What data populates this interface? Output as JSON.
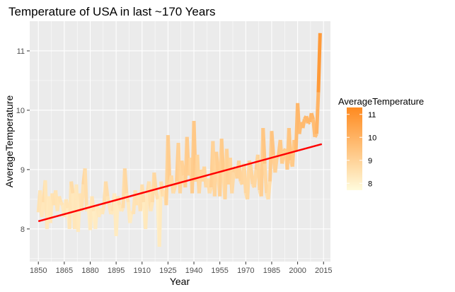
{
  "chart_data": {
    "type": "line",
    "title": "Temperature of USA in last ~170 Years",
    "xlabel": "Year",
    "ylabel": "AverageTemperature",
    "xlim": [
      1845,
      2019
    ],
    "ylim": [
      7.45,
      11.5
    ],
    "x_ticks": [
      "1850",
      "1865",
      "1880",
      "1895",
      "1910",
      "1925",
      "1940",
      "1955",
      "1970",
      "1985",
      "2000",
      "2015"
    ],
    "y_ticks": [
      "8",
      "9",
      "10",
      "11"
    ],
    "grid": true,
    "legend_position": "right",
    "legend": {
      "title": "AverageTemperature",
      "labels": [
        "11",
        "10",
        "9",
        "8"
      ],
      "low_color": "#fffbdc",
      "high_color": "#ff8a1f"
    },
    "colors": {
      "panel": "#ebebeb",
      "grid": "#ffffff",
      "trend": "#ff0000"
    },
    "series": [
      {
        "x": [
          1850,
          1851,
          1852,
          1853,
          1854,
          1855,
          1856,
          1857,
          1858,
          1859,
          1860,
          1861,
          1862,
          1863,
          1864,
          1865,
          1866,
          1867,
          1868,
          1869,
          1870,
          1871,
          1872,
          1873,
          1874,
          1875,
          1876,
          1877,
          1878,
          1879,
          1880,
          1881,
          1882,
          1883,
          1884,
          1885,
          1886,
          1887,
          1888,
          1889,
          1890,
          1891,
          1892,
          1893,
          1894,
          1895,
          1896,
          1897,
          1898,
          1899,
          1900,
          1901,
          1902,
          1903,
          1904,
          1905,
          1906,
          1907,
          1908,
          1909,
          1910,
          1911,
          1912,
          1913,
          1914,
          1915,
          1916,
          1917,
          1918,
          1919,
          1920,
          1921,
          1922,
          1923,
          1924,
          1925,
          1926,
          1927,
          1928,
          1929,
          1930,
          1931,
          1932,
          1933,
          1934,
          1935,
          1936,
          1937,
          1938,
          1939,
          1940,
          1941,
          1942,
          1943,
          1944,
          1945,
          1946,
          1947,
          1948,
          1949,
          1950,
          1951,
          1952,
          1953,
          1954,
          1955,
          1956,
          1957,
          1958,
          1959,
          1960,
          1961,
          1962,
          1963,
          1964,
          1965,
          1966,
          1967,
          1968,
          1969,
          1970,
          1971,
          1972,
          1973,
          1974,
          1975,
          1976,
          1977,
          1978,
          1979,
          1980,
          1981,
          1982,
          1983,
          1984,
          1985,
          1986,
          1987,
          1988,
          1989,
          1990,
          1991,
          1992,
          1993,
          1994,
          1995,
          1996,
          1997,
          1998,
          1999,
          2000,
          2001,
          2002,
          2003,
          2004,
          2005,
          2006,
          2007,
          2008,
          2009,
          2010,
          2011,
          2012,
          2013
        ],
        "values": [
          8.28,
          8.65,
          8.2,
          8.45,
          8.82,
          8.0,
          8.55,
          8.1,
          8.6,
          8.4,
          8.65,
          8.3,
          8.55,
          8.45,
          8.4,
          8.2,
          8.5,
          8.35,
          8.0,
          8.8,
          8.6,
          8.0,
          8.75,
          7.95,
          8.6,
          8.3,
          8.75,
          9.02,
          8.3,
          8.4,
          7.98,
          8.55,
          8.3,
          8.0,
          8.4,
          8.2,
          8.35,
          8.25,
          8.4,
          8.8,
          8.55,
          8.4,
          8.25,
          8.3,
          8.6,
          7.88,
          8.55,
          8.4,
          8.3,
          8.35,
          9.02,
          8.6,
          8.45,
          8.1,
          8.3,
          8.25,
          8.65,
          8.4,
          8.6,
          8.3,
          8.75,
          8.45,
          8.0,
          8.6,
          8.8,
          8.3,
          8.45,
          8.95,
          8.65,
          8.5,
          7.7,
          8.8,
          8.55,
          8.65,
          8.4,
          9.58,
          8.75,
          8.9,
          8.6,
          8.7,
          8.8,
          9.45,
          8.6,
          9.15,
          8.9,
          8.7,
          9.55,
          8.9,
          9.2,
          8.6,
          9.82,
          8.8,
          9.25,
          8.6,
          9.0,
          8.8,
          9.05,
          8.7,
          8.85,
          8.6,
          8.7,
          9.48,
          8.55,
          9.3,
          8.95,
          8.55,
          9.52,
          8.95,
          8.5,
          9.35,
          8.75,
          9.2,
          8.6,
          8.95,
          9.05,
          8.85,
          9.15,
          8.8,
          8.75,
          9.1,
          8.6,
          8.5,
          9.15,
          9.05,
          8.75,
          8.7,
          9.0,
          9.25,
          8.65,
          8.55,
          9.7,
          9.1,
          8.6,
          8.5,
          8.8,
          9.65,
          9.25,
          8.95,
          9.2,
          9.25,
          9.5,
          9.1,
          9.3,
          9.35,
          9.0,
          9.7,
          9.15,
          9.05,
          9.5,
          9.3,
          10.12,
          9.6,
          9.8,
          9.7,
          9.85,
          9.9,
          9.78,
          9.8,
          9.95,
          9.85,
          9.55,
          9.6,
          10.3,
          11.3
        ]
      }
    ],
    "trend": {
      "x": [
        1850,
        2014
      ],
      "y": [
        8.13,
        9.43
      ]
    }
  }
}
